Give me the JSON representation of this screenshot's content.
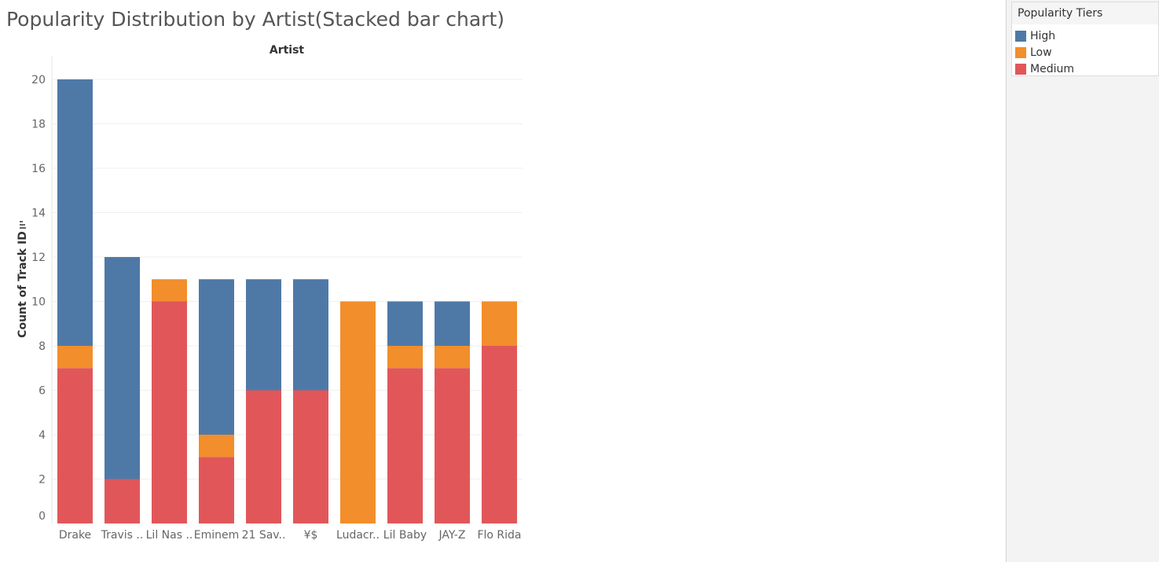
{
  "page": {
    "title": "Popularity Distribution by Artist(Stacked bar chart)"
  },
  "legend": {
    "title": "Popularity Tiers",
    "items": [
      {
        "label": "High",
        "color": "#4e79a7"
      },
      {
        "label": "Low",
        "color": "#f28e2b"
      },
      {
        "label": "Medium",
        "color": "#e15759"
      }
    ]
  },
  "chart_data": {
    "type": "bar",
    "stacked": true,
    "title": "Popularity Distribution by Artist(Stacked bar chart)",
    "xlabel": "Artist",
    "ylabel": "Count of Track ID",
    "ylim": [
      0,
      20
    ],
    "yticks": [
      0,
      2,
      4,
      6,
      8,
      10,
      12,
      14,
      16,
      18,
      20
    ],
    "grid": true,
    "categories": [
      "Drake",
      "Travis ..",
      "Lil Nas ..",
      "Eminem",
      "21 Sav..",
      "¥$",
      "Ludacr..",
      "Lil Baby",
      "JAY-Z",
      "Flo Rida"
    ],
    "stack_order": [
      "Medium",
      "Low",
      "High"
    ],
    "series": [
      {
        "name": "High",
        "color": "#4e79a7",
        "values": [
          12,
          10,
          0,
          7,
          5,
          5,
          0,
          2,
          2,
          0
        ]
      },
      {
        "name": "Low",
        "color": "#f28e2b",
        "values": [
          1,
          0,
          1,
          1,
          0,
          0,
          10,
          1,
          1,
          2
        ]
      },
      {
        "name": "Medium",
        "color": "#e15759",
        "values": [
          7,
          2,
          10,
          3,
          6,
          6,
          0,
          7,
          7,
          8
        ]
      }
    ]
  }
}
